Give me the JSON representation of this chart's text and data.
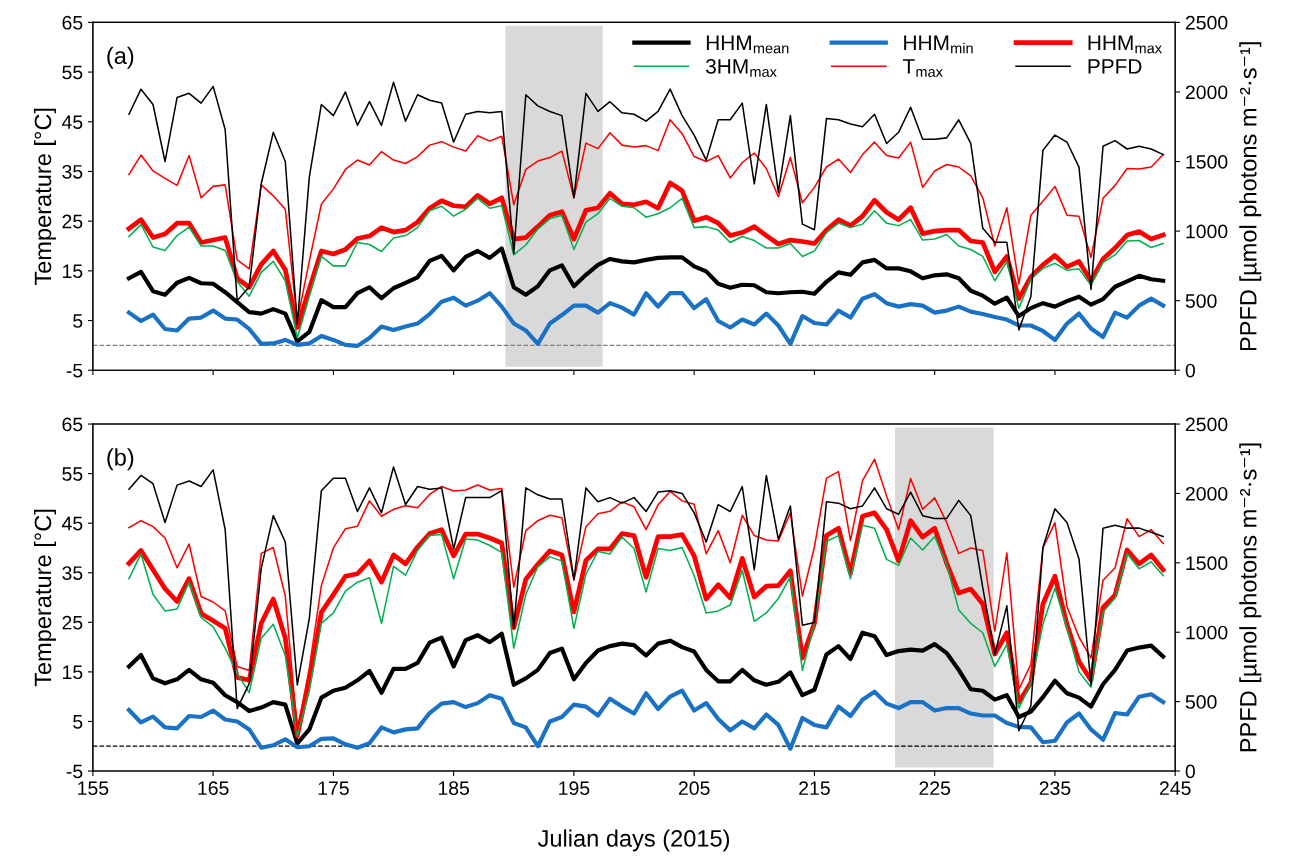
{
  "chart_data": [
    {
      "type": "line",
      "title": "(a)",
      "ylabel": "Temperature [°C]",
      "y2label": "PPFD [µmol photons m⁻²·s⁻¹]",
      "legend": "top right",
      "tick_labels": "y",
      "xlim": [
        155,
        245
      ],
      "xticks": [
        155,
        165,
        175,
        185,
        195,
        205,
        215,
        225,
        235,
        245
      ],
      "ylim": [
        -5,
        65
      ],
      "yticks": [
        -5,
        5,
        15,
        25,
        35,
        45,
        55,
        65
      ],
      "y2lim": [
        0,
        2500
      ],
      "y2ticks": [
        0,
        500,
        1000,
        1500,
        2000,
        2500
      ],
      "x": [
        158,
        159,
        160,
        161,
        162,
        163,
        164,
        165,
        166,
        167,
        168,
        169,
        170,
        171,
        172,
        173,
        174,
        175,
        176,
        177,
        178,
        179,
        180,
        181,
        182,
        183,
        184,
        185,
        186,
        187,
        188,
        189,
        190,
        191,
        192,
        193,
        194,
        195,
        196,
        197,
        198,
        199,
        200,
        201,
        202,
        203,
        204,
        205,
        206,
        207,
        208,
        209,
        210,
        211,
        212,
        213,
        214,
        215,
        216,
        217,
        218,
        219,
        220,
        221,
        222,
        223,
        224,
        225,
        226,
        227,
        228,
        229,
        230,
        231,
        232,
        233,
        234,
        235,
        236,
        237,
        238,
        239,
        240,
        241,
        242,
        243,
        244
      ],
      "bands": [
        {
          "axis": "x",
          "from": 189.3,
          "to": 197.4,
          "color": "#d9d9d9"
        }
      ],
      "ref_lines": [
        {
          "axis": "y",
          "value": 0,
          "line_style": "dashed",
          "color": "#808080"
        }
      ],
      "series": [
        {
          "name": "HHM$_{mean}$",
          "color": "#000000",
          "values": [
            13.5,
            14.8,
            10.9,
            10.2,
            12.6,
            13.6,
            12.5,
            12.4,
            10.7,
            8.7,
            6.7,
            6.4,
            7.3,
            6.4,
            0.8,
            2.7,
            9.1,
            7.7,
            7.7,
            10.5,
            11.7,
            9.5,
            11.5,
            12.6,
            13.7,
            17.0,
            18.0,
            15.1,
            17.8,
            19.0,
            17.6,
            19.5,
            11.7,
            10.2,
            11.9,
            15.1,
            16.1,
            11.9,
            14.2,
            16.2,
            17.4,
            16.9,
            16.7,
            17.2,
            17.6,
            17.7,
            17.7,
            15.9,
            14.9,
            12.4,
            11.6,
            12.2,
            12.1,
            10.7,
            10.5,
            10.7,
            10.8,
            10.4,
            12.8,
            14.7,
            14.2,
            16.7,
            17.2,
            15.5,
            15.5,
            14.9,
            13.5,
            14.1,
            14.3,
            13.5,
            11.0,
            10.0,
            8.4,
            9.6,
            5.9,
            7.5,
            8.5,
            7.8,
            8.9,
            9.8,
            8.2,
            9.3,
            11.8,
            12.9,
            14.0,
            13.3,
            13.0
          ]
        },
        {
          "name": "HHM$_{min}$",
          "color": "#1a72c6",
          "values": [
            6.6,
            4.9,
            6.2,
            3.3,
            3.0,
            5.4,
            5.6,
            7.0,
            5.4,
            5.2,
            3.3,
            0.3,
            0.4,
            1.1,
            0.1,
            0.4,
            1.9,
            1.1,
            0.1,
            -0.1,
            1.5,
            3.8,
            3.1,
            3.8,
            4.4,
            6.3,
            8.8,
            9.6,
            8.0,
            9.0,
            10.5,
            7.8,
            4.4,
            3.0,
            0.3,
            4.4,
            6.1,
            8.0,
            8.0,
            6.6,
            8.5,
            7.6,
            6.2,
            10.5,
            7.8,
            10.5,
            10.5,
            7.5,
            9.3,
            4.9,
            3.6,
            5.2,
            4.2,
            6.4,
            4.0,
            0.3,
            5.9,
            4.5,
            4.2,
            7.0,
            5.6,
            9.4,
            10.3,
            8.5,
            7.8,
            8.3,
            8.0,
            6.6,
            7.0,
            7.8,
            6.8,
            6.3,
            5.7,
            5.2,
            4.0,
            4.0,
            2.9,
            1.1,
            4.4,
            6.4,
            3.4,
            1.7,
            6.6,
            5.6,
            8.0,
            9.4,
            8.0
          ]
        },
        {
          "name": "HHM$_{max}$",
          "color": "#ff0000",
          "values": [
            23.5,
            25.3,
            21.7,
            22.4,
            24.6,
            24.6,
            20.7,
            21.2,
            21.7,
            13.5,
            11.7,
            16.3,
            19.0,
            15.2,
            3.6,
            11.4,
            19.0,
            18.4,
            19.3,
            21.5,
            22.0,
            23.7,
            22.8,
            23.2,
            24.8,
            27.6,
            29.1,
            28.1,
            27.9,
            30.2,
            28.5,
            29.7,
            21.4,
            21.7,
            23.9,
            26.2,
            26.9,
            21.4,
            27.2,
            27.7,
            30.6,
            28.5,
            28.3,
            28.9,
            27.6,
            32.7,
            31.1,
            25.1,
            25.8,
            24.6,
            22.1,
            22.7,
            23.9,
            22.1,
            20.4,
            21.2,
            20.9,
            20.5,
            23.2,
            25.3,
            24.1,
            26.0,
            29.2,
            26.8,
            25.3,
            27.7,
            22.5,
            23.0,
            23.2,
            23.2,
            21.0,
            20.7,
            14.8,
            17.9,
            9.4,
            13.8,
            16.2,
            18.1,
            15.8,
            16.9,
            13.0,
            17.4,
            19.6,
            22.2,
            22.9,
            21.4,
            22.2
          ]
        },
        {
          "name": "3HM$_{max}$",
          "color": "#00b050",
          "values": [
            21.9,
            24.3,
            19.8,
            19.1,
            22.1,
            23.8,
            20.0,
            20.0,
            19.1,
            12.8,
            9.9,
            14.7,
            16.9,
            13.0,
            1.5,
            9.9,
            17.9,
            16.0,
            16.0,
            20.7,
            20.3,
            18.9,
            21.6,
            22.1,
            23.7,
            27.1,
            28.0,
            26.0,
            27.4,
            29.6,
            27.6,
            28.1,
            18.2,
            20.2,
            23.4,
            25.5,
            26.2,
            19.3,
            24.8,
            26.5,
            29.6,
            28.0,
            27.7,
            25.8,
            26.5,
            27.7,
            29.6,
            23.7,
            23.9,
            23.2,
            20.7,
            21.9,
            21.1,
            19.6,
            19.6,
            20.5,
            17.9,
            19.0,
            22.7,
            24.6,
            23.7,
            24.4,
            27.1,
            24.6,
            24.1,
            25.3,
            21.2,
            21.4,
            22.3,
            20.0,
            19.3,
            17.9,
            13.0,
            16.8,
            7.5,
            13.3,
            15.5,
            16.5,
            15.1,
            15.4,
            12.1,
            16.7,
            18.2,
            21.0,
            21.1,
            19.7,
            20.5
          ]
        },
        {
          "name": "T$_{max}$",
          "color": "#ff0000",
          "values": [
            34.4,
            38.3,
            35.1,
            33.6,
            32.2,
            38.2,
            29.7,
            32.0,
            32.3,
            17.2,
            15.4,
            32.3,
            30.1,
            27.4,
            5.0,
            17.0,
            28.4,
            31.5,
            35.4,
            37.3,
            36.3,
            39.0,
            37.3,
            36.6,
            38.0,
            40.3,
            41.0,
            39.9,
            39.1,
            42.2,
            41.1,
            42.1,
            28.3,
            35.4,
            37.1,
            37.8,
            39.1,
            29.7,
            40.7,
            39.6,
            42.8,
            40.3,
            39.9,
            40.2,
            39.2,
            45.4,
            42.6,
            38.0,
            37.0,
            38.2,
            33.7,
            36.8,
            38.7,
            35.6,
            29.9,
            37.8,
            28.7,
            31.8,
            35.9,
            37.5,
            34.8,
            38.4,
            40.9,
            38.2,
            37.7,
            40.9,
            31.8,
            35.1,
            36.4,
            35.9,
            34.1,
            29.7,
            20.0,
            27.7,
            12.4,
            26.2,
            29.0,
            32.0,
            26.2,
            26.0,
            17.7,
            29.6,
            32.2,
            35.6,
            35.5,
            35.9,
            38.4
          ]
        },
        {
          "name": "PPFD",
          "color": "#000000",
          "axis": "y2",
          "values": [
            1840,
            2020,
            1910,
            1500,
            1960,
            1990,
            1920,
            2040,
            1730,
            500,
            600,
            1340,
            1710,
            1500,
            330,
            1390,
            1910,
            1830,
            2000,
            1760,
            1930,
            1760,
            2070,
            1790,
            1980,
            1940,
            1920,
            1640,
            1840,
            1860,
            1850,
            1860,
            840,
            1980,
            1900,
            1860,
            1830,
            1240,
            1990,
            1860,
            1930,
            1850,
            1840,
            1790,
            1860,
            2020,
            1830,
            1690,
            1510,
            1800,
            1800,
            1920,
            1340,
            1910,
            1280,
            1830,
            1050,
            1010,
            1810,
            1800,
            1770,
            1750,
            1840,
            1630,
            1710,
            1890,
            1660,
            1660,
            1670,
            1800,
            1630,
            1020,
            920,
            920,
            290,
            530,
            1580,
            1690,
            1640,
            1460,
            580,
            1610,
            1650,
            1590,
            1610,
            1590,
            1550
          ]
        }
      ]
    },
    {
      "type": "line",
      "title": "(b)",
      "xlabel": "Julian days (2015)",
      "ylabel": "Temperature [°C]",
      "y2label": "PPFD [µmol photons m⁻²·s⁻¹]",
      "xlim": [
        155,
        245
      ],
      "xticks": [
        155,
        165,
        175,
        185,
        195,
        205,
        215,
        225,
        235,
        245
      ],
      "ylim": [
        -5,
        65
      ],
      "yticks": [
        -5,
        5,
        15,
        25,
        35,
        45,
        55,
        65
      ],
      "y2lim": [
        0,
        2500
      ],
      "y2ticks": [
        0,
        500,
        1000,
        1500,
        2000,
        2500
      ],
      "x": [
        158,
        159,
        160,
        161,
        162,
        163,
        164,
        165,
        166,
        167,
        168,
        169,
        170,
        171,
        172,
        173,
        174,
        175,
        176,
        177,
        178,
        179,
        180,
        181,
        182,
        183,
        184,
        185,
        186,
        187,
        188,
        189,
        190,
        191,
        192,
        193,
        194,
        195,
        196,
        197,
        198,
        199,
        200,
        201,
        202,
        203,
        204,
        205,
        206,
        207,
        208,
        209,
        210,
        211,
        212,
        213,
        214,
        215,
        216,
        217,
        218,
        219,
        220,
        221,
        222,
        223,
        224,
        225,
        226,
        227,
        228,
        229,
        230,
        231,
        232,
        233,
        234,
        235,
        236,
        237,
        238,
        239,
        240,
        241,
        242,
        243,
        244
      ],
      "bands": [
        {
          "axis": "x",
          "from": 221.7,
          "to": 229.9,
          "color": "#d9d9d9"
        }
      ],
      "ref_lines": [
        {
          "axis": "y",
          "value": 0,
          "line_style": "dashed",
          "color": "#000000"
        }
      ],
      "series": [
        {
          "color": "#000000",
          "values": [
            16.1,
            18.4,
            13.7,
            12.7,
            13.5,
            15.4,
            13.5,
            12.8,
            10.3,
            8.9,
            7.1,
            7.8,
            8.9,
            8.4,
            0.6,
            3.4,
            9.8,
            11.2,
            11.8,
            13.3,
            15.2,
            10.8,
            15.6,
            15.6,
            16.8,
            20.9,
            21.9,
            16.1,
            21.4,
            22.4,
            21.0,
            22.7,
            12.4,
            13.7,
            15.4,
            18.8,
            19.7,
            13.5,
            16.8,
            19.3,
            20.2,
            20.7,
            20.4,
            18.3,
            20.7,
            21.3,
            20.0,
            19.1,
            15.4,
            13.1,
            13.1,
            15.4,
            13.3,
            12.4,
            13.0,
            14.9,
            10.3,
            11.4,
            18.5,
            20.2,
            17.6,
            22.9,
            22.2,
            18.4,
            19.2,
            19.5,
            19.3,
            20.6,
            18.8,
            15.4,
            11.5,
            11.2,
            9.4,
            10.3,
            5.9,
            7.0,
            9.9,
            13.2,
            10.7,
            9.8,
            8.0,
            12.5,
            15.4,
            19.3,
            19.9,
            20.3,
            18.1
          ]
        },
        {
          "color": "#1a72c6",
          "values": [
            7.3,
            4.8,
            6.0,
            3.8,
            3.6,
            6.1,
            5.9,
            7.2,
            5.4,
            5.0,
            3.4,
            -0.3,
            0.2,
            1.4,
            -0.2,
            0.0,
            1.5,
            1.6,
            0.4,
            -0.3,
            0.6,
            3.8,
            2.8,
            3.4,
            3.6,
            6.7,
            8.6,
            8.9,
            7.9,
            8.7,
            10.3,
            9.6,
            4.7,
            3.8,
            0.0,
            5.0,
            5.9,
            8.4,
            8.0,
            6.2,
            9.6,
            8.0,
            6.6,
            10.7,
            7.5,
            10.0,
            11.2,
            7.2,
            8.7,
            5.5,
            3.2,
            5.0,
            3.6,
            6.4,
            4.3,
            -0.5,
            5.7,
            4.3,
            3.8,
            8.0,
            6.1,
            9.4,
            11.0,
            8.6,
            7.7,
            8.9,
            8.9,
            7.2,
            7.7,
            7.7,
            6.6,
            6.2,
            6.2,
            4.7,
            3.9,
            3.8,
            0.8,
            1.1,
            4.8,
            6.6,
            3.4,
            1.3,
            6.7,
            6.4,
            10.0,
            10.5,
            8.9
          ]
        },
        {
          "color": "#ff0000",
          "values": [
            36.9,
            39.5,
            35.6,
            31.8,
            29.2,
            33.8,
            26.8,
            25.3,
            23.8,
            13.9,
            13.3,
            24.8,
            29.7,
            21.8,
            2.1,
            13.3,
            27.0,
            30.6,
            34.3,
            34.8,
            37.4,
            33.1,
            38.6,
            36.8,
            40.2,
            42.9,
            43.7,
            38.4,
            42.8,
            42.8,
            42.0,
            41.0,
            23.9,
            33.7,
            36.7,
            39.4,
            38.6,
            27.1,
            37.5,
            39.8,
            39.8,
            42.9,
            42.5,
            34.1,
            42.3,
            42.3,
            42.7,
            38.4,
            29.7,
            32.6,
            29.9,
            37.9,
            30.1,
            32.3,
            32.4,
            35.4,
            17.8,
            24.8,
            42.5,
            44.0,
            34.9,
            46.4,
            47.1,
            43.7,
            37.4,
            45.5,
            42.2,
            44.0,
            36.9,
            30.9,
            31.7,
            28.7,
            18.6,
            22.9,
            8.9,
            12.8,
            28.7,
            34.3,
            24.6,
            17.1,
            13.3,
            28.0,
            30.5,
            39.6,
            36.8,
            38.6,
            35.6
          ]
        },
        {
          "color": "#00b050",
          "values": [
            33.8,
            38.8,
            30.6,
            27.3,
            27.7,
            33.1,
            26.0,
            24.1,
            19.8,
            14.7,
            10.8,
            21.8,
            24.6,
            18.3,
            2.1,
            11.2,
            24.8,
            26.9,
            31.3,
            33.1,
            34.0,
            24.8,
            36.3,
            34.5,
            39.5,
            42.5,
            42.7,
            33.8,
            41.8,
            41.6,
            40.5,
            39.1,
            19.8,
            30.6,
            36.2,
            38.2,
            37.4,
            23.8,
            34.7,
            39.3,
            38.8,
            42.2,
            39.9,
            31.1,
            39.9,
            39.5,
            40.1,
            34.4,
            26.9,
            27.3,
            28.5,
            35.5,
            25.2,
            26.9,
            29.8,
            34.2,
            15.3,
            24.8,
            41.3,
            42.5,
            33.8,
            44.6,
            44.0,
            37.7,
            36.5,
            42.0,
            39.6,
            42.3,
            36.7,
            27.5,
            24.8,
            22.9,
            16.1,
            20.5,
            7.7,
            12.6,
            24.6,
            31.9,
            23.9,
            15.0,
            11.9,
            27.1,
            29.9,
            38.9,
            35.8,
            37.2,
            34.4
          ]
        },
        {
          "color": "#ff0000",
          "values": [
            44.1,
            45.5,
            44.3,
            42.0,
            36.0,
            40.8,
            30.2,
            29.1,
            27.3,
            16.1,
            15.3,
            38.9,
            40.1,
            30.3,
            3.1,
            15.8,
            32.4,
            40.0,
            43.9,
            44.4,
            49.5,
            46.4,
            47.8,
            48.5,
            48.1,
            50.8,
            52.4,
            51.5,
            51.7,
            52.7,
            51.7,
            52.0,
            32.1,
            43.5,
            45.5,
            46.6,
            46.1,
            33.5,
            44.3,
            46.9,
            47.4,
            49.3,
            48.3,
            43.7,
            48.7,
            51.4,
            49.5,
            48.8,
            38.8,
            43.5,
            37.0,
            46.6,
            42.5,
            41.6,
            41.4,
            47.1,
            30.3,
            40.2,
            54.1,
            55.4,
            41.5,
            53.6,
            57.9,
            50.5,
            43.7,
            54.0,
            47.8,
            50.1,
            45.1,
            38.9,
            40.0,
            39.5,
            23.2,
            39.0,
            11.5,
            16.5,
            40.0,
            45.1,
            28.2,
            22.0,
            17.8,
            33.5,
            36.0,
            45.9,
            42.3,
            43.7,
            40.9
          ]
        },
        {
          "color": "#000000",
          "axis": "y2",
          "values": [
            2030,
            2130,
            2070,
            1790,
            2060,
            2090,
            2050,
            2170,
            1740,
            450,
            630,
            1460,
            1840,
            1650,
            620,
            1100,
            2020,
            2110,
            2110,
            1870,
            2040,
            1860,
            2190,
            1920,
            2050,
            2030,
            2040,
            1600,
            1970,
            1970,
            1970,
            2020,
            1030,
            2040,
            1990,
            1960,
            1960,
            1380,
            2040,
            1940,
            1970,
            1930,
            1970,
            1870,
            2010,
            2020,
            2000,
            1860,
            1650,
            1920,
            1870,
            2050,
            1450,
            2130,
            1670,
            1910,
            1050,
            1070,
            1940,
            1930,
            1890,
            1910,
            2040,
            1890,
            1850,
            2010,
            1840,
            1820,
            1820,
            1950,
            1840,
            1320,
            840,
            1190,
            290,
            470,
            1610,
            1890,
            1790,
            1530,
            620,
            1750,
            1770,
            1750,
            1750,
            1720,
            1690
          ]
        }
      ]
    }
  ]
}
